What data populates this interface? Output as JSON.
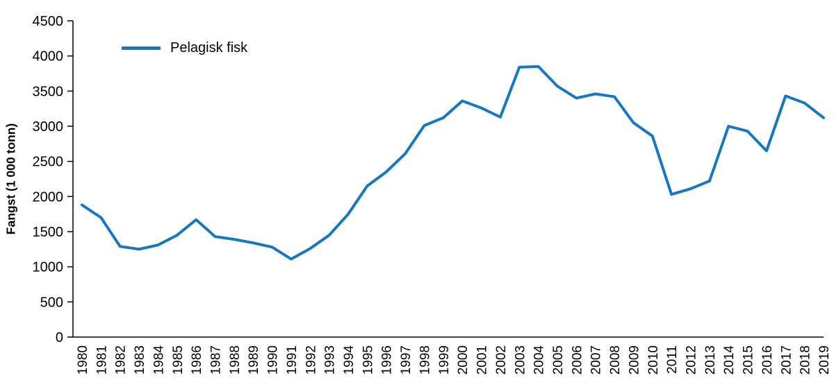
{
  "chart_data": {
    "type": "line",
    "title": "",
    "xlabel": "",
    "ylabel": "Fangst (1 000 tonn)",
    "ylim": [
      0,
      4500
    ],
    "ytick_step": 500,
    "grid": false,
    "legend_position": "top-left-inside",
    "categories": [
      "1980",
      "1981",
      "1982",
      "1983",
      "1984",
      "1985",
      "1986",
      "1987",
      "1988",
      "1989",
      "1990",
      "1991",
      "1992",
      "1993",
      "1994",
      "1995",
      "1996",
      "1997",
      "1998",
      "1999",
      "2000",
      "2001",
      "2002",
      "2003",
      "2004",
      "2005",
      "2006",
      "2007",
      "2008",
      "2009",
      "2010",
      "2011",
      "2012",
      "2013",
      "2014",
      "2015",
      "2016",
      "2017",
      "2018",
      "2019"
    ],
    "series": [
      {
        "name": "Pelagisk fisk",
        "color": "#1878be",
        "values": [
          1880,
          1700,
          1290,
          1250,
          1310,
          1450,
          1670,
          1430,
          1390,
          1340,
          1280,
          1110,
          1260,
          1450,
          1750,
          2150,
          2350,
          2610,
          3010,
          3120,
          3360,
          3260,
          3130,
          3840,
          3850,
          3570,
          3400,
          3460,
          3420,
          3050,
          2860,
          2030,
          2110,
          2220,
          3000,
          2930,
          2650,
          3430,
          3330,
          3120
        ]
      }
    ],
    "axis_color": "#000000",
    "text_color": "#000000"
  }
}
